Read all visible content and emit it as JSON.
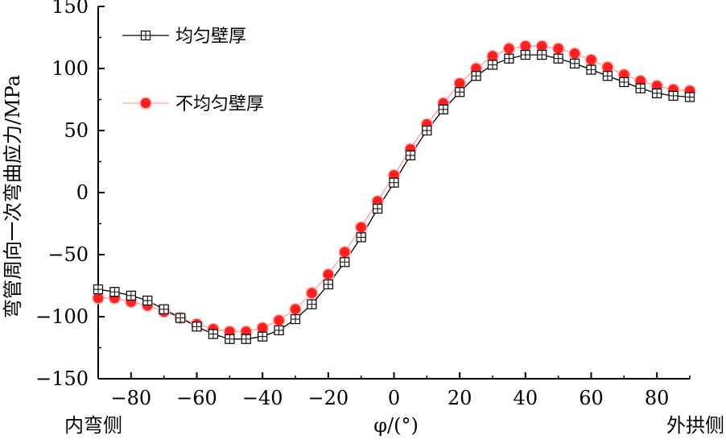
{
  "chart_data": {
    "type": "line",
    "title": "",
    "xlabel": "φ/(°)",
    "ylabel": "弯管周向一次弯曲应力/MPa",
    "xlim": [
      -90,
      90
    ],
    "ylim": [
      -150,
      150
    ],
    "x_ticks": [
      -80,
      -60,
      -40,
      -20,
      0,
      20,
      40,
      60,
      80
    ],
    "x_tick_labels": [
      "−80",
      "−60",
      "−40",
      "−20",
      "0",
      "20",
      "40",
      "60",
      "80"
    ],
    "y_ticks": [
      150,
      100,
      50,
      0,
      -50,
      -100,
      -150
    ],
    "y_tick_labels": [
      "150",
      "100",
      "50",
      "0",
      "−50",
      "−100",
      "−150"
    ],
    "left_side_label": "内弯侧",
    "right_side_label": "外拱侧",
    "grid": false,
    "legend_position": "top-left",
    "x": [
      -90,
      -85,
      -80,
      -75,
      -70,
      -65,
      -60,
      -55,
      -50,
      -45,
      -40,
      -35,
      -30,
      -25,
      -20,
      -15,
      -10,
      -5,
      0,
      5,
      10,
      15,
      20,
      25,
      30,
      35,
      40,
      45,
      50,
      55,
      60,
      65,
      70,
      75,
      80,
      85,
      90
    ],
    "series": [
      {
        "name": "均匀壁厚",
        "color": "#000000",
        "marker": "square-cross",
        "values": [
          -78,
          -80,
          -83,
          -87,
          -94,
          -101,
          -108,
          -114,
          -118,
          -118,
          -116,
          -111,
          -102,
          -90,
          -74,
          -56,
          -36,
          -13,
          8,
          30,
          50,
          67,
          81,
          94,
          103,
          108,
          111,
          111,
          108,
          104,
          99,
          94,
          89,
          84,
          80,
          78,
          77
        ]
      },
      {
        "name": "不均匀壁厚",
        "color": "#ff2020",
        "marker": "circle",
        "values": [
          -85,
          -85,
          -88,
          -91,
          -96,
          -101,
          -106,
          -110,
          -112,
          -112,
          -109,
          -103,
          -94,
          -81,
          -66,
          -48,
          -28,
          -7,
          14,
          35,
          55,
          72,
          88,
          100,
          110,
          116,
          118,
          118,
          116,
          112,
          107,
          101,
          95,
          90,
          86,
          83,
          82
        ]
      }
    ]
  }
}
